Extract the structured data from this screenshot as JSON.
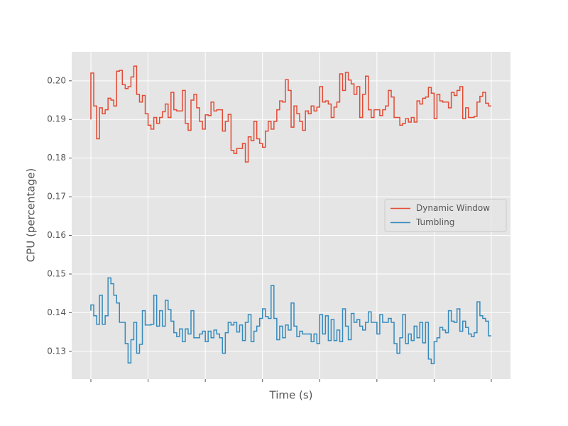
{
  "chart_data": {
    "type": "step",
    "xlabel": "Time (s)",
    "ylabel": "CPU (percentage)",
    "x": [
      0,
      1,
      2,
      3,
      4,
      5,
      6,
      7,
      8,
      9,
      10,
      11,
      12,
      13,
      14,
      15,
      16,
      17,
      18,
      19,
      20,
      21,
      22,
      23,
      24,
      25,
      26,
      27,
      28,
      29,
      30,
      31,
      32,
      33,
      34,
      35,
      36,
      37,
      38,
      39,
      40,
      41,
      42,
      43,
      44,
      45,
      46,
      47,
      48,
      49,
      50,
      51,
      52,
      53,
      54,
      55,
      56,
      57,
      58,
      59,
      60,
      61,
      62,
      63,
      64,
      65,
      66,
      67,
      68,
      69,
      70,
      71,
      72,
      73,
      74,
      75,
      76,
      77,
      78,
      79,
      80,
      81,
      82,
      83,
      84,
      85,
      86,
      87,
      88,
      89,
      90,
      91,
      92,
      93,
      94,
      95,
      96,
      97,
      98,
      99,
      100,
      101,
      102,
      103,
      104,
      105,
      106,
      107,
      108,
      109,
      110,
      111,
      112,
      113,
      114,
      115,
      116,
      117,
      118,
      119,
      120,
      121,
      122,
      123,
      124,
      125,
      126,
      127,
      128,
      129,
      130,
      131,
      132,
      133,
      134,
      135,
      136,
      137,
      138,
      139,
      140
    ],
    "series": [
      {
        "name": "Dynamic Window",
        "color": "#E24A33",
        "values": [
          0.19,
          0.202,
          0.1935,
          0.185,
          0.193,
          0.1915,
          0.1925,
          0.1955,
          0.195,
          0.1935,
          0.2025,
          0.2027,
          0.199,
          0.198,
          0.1985,
          0.201,
          0.2038,
          0.1965,
          0.1945,
          0.1962,
          0.1915,
          0.1885,
          0.1875,
          0.1905,
          0.189,
          0.1905,
          0.192,
          0.194,
          0.1905,
          0.197,
          0.1925,
          0.1922,
          0.1922,
          0.1975,
          0.189,
          0.1872,
          0.195,
          0.1965,
          0.193,
          0.1895,
          0.1875,
          0.1912,
          0.191,
          0.1945,
          0.1922,
          0.1925,
          0.1925,
          0.187,
          0.1895,
          0.1913,
          0.182,
          0.1812,
          0.1825,
          0.1825,
          0.1838,
          0.179,
          0.1855,
          0.1845,
          0.1895,
          0.185,
          0.1838,
          0.1828,
          0.187,
          0.1895,
          0.1875,
          0.1895,
          0.1925,
          0.1948,
          0.1945,
          0.2003,
          0.1975,
          0.188,
          0.1935,
          0.1915,
          0.1895,
          0.1872,
          0.1922,
          0.1915,
          0.1935,
          0.1922,
          0.1932,
          0.1985,
          0.1945,
          0.1948,
          0.194,
          0.1905,
          0.1932,
          0.1945,
          0.2018,
          0.1975,
          0.2022,
          0.2002,
          0.1992,
          0.1965,
          0.1985,
          0.1905,
          0.1965,
          0.2012,
          0.1925,
          0.1905,
          0.1925,
          0.1925,
          0.191,
          0.1925,
          0.1935,
          0.1975,
          0.1958,
          0.1905,
          0.1905,
          0.1885,
          0.189,
          0.1902,
          0.1893,
          0.1905,
          0.1893,
          0.1948,
          0.194,
          0.1955,
          0.1958,
          0.1983,
          0.1968,
          0.1902,
          0.1965,
          0.1948,
          0.1945,
          0.1945,
          0.193,
          0.197,
          0.1962,
          0.1975,
          0.1985,
          0.1902,
          0.193,
          0.1905,
          0.1905,
          0.1908,
          0.1945,
          0.196,
          0.197,
          0.1942,
          0.1935
        ]
      },
      {
        "name": "Tumbling",
        "color": "#348ABD",
        "values": [
          0.1405,
          0.142,
          0.1392,
          0.137,
          0.1445,
          0.137,
          0.1392,
          0.149,
          0.1475,
          0.1445,
          0.1425,
          0.1375,
          0.1375,
          0.132,
          0.127,
          0.133,
          0.1375,
          0.1295,
          0.1318,
          0.1405,
          0.1368,
          0.1368,
          0.137,
          0.1445,
          0.1365,
          0.1405,
          0.1365,
          0.1432,
          0.1408,
          0.1378,
          0.1348,
          0.1338,
          0.1358,
          0.1325,
          0.1358,
          0.1345,
          0.1405,
          0.1335,
          0.1335,
          0.1345,
          0.1352,
          0.1325,
          0.1352,
          0.1335,
          0.1355,
          0.1345,
          0.1335,
          0.1295,
          0.1348,
          0.1375,
          0.1368,
          0.1375,
          0.135,
          0.1368,
          0.1328,
          0.1375,
          0.1395,
          0.1325,
          0.1352,
          0.1365,
          0.1385,
          0.141,
          0.139,
          0.1385,
          0.147,
          0.1385,
          0.133,
          0.1365,
          0.1335,
          0.1368,
          0.1355,
          0.1425,
          0.1365,
          0.1338,
          0.1352,
          0.1345,
          0.1345,
          0.1345,
          0.1325,
          0.1345,
          0.132,
          0.1395,
          0.1345,
          0.1392,
          0.1328,
          0.1382,
          0.1328,
          0.1355,
          0.1325,
          0.141,
          0.1365,
          0.133,
          0.1398,
          0.1375,
          0.1382,
          0.1365,
          0.1355,
          0.1375,
          0.1402,
          0.1375,
          0.1375,
          0.1345,
          0.1395,
          0.1375,
          0.1375,
          0.1385,
          0.1375,
          0.132,
          0.1295,
          0.1335,
          0.1395,
          0.132,
          0.1345,
          0.1328,
          0.1365,
          0.1335,
          0.1375,
          0.1322,
          0.1375,
          0.128,
          0.1268,
          0.1325,
          0.1335,
          0.1362,
          0.1355,
          0.1348,
          0.1405,
          0.1378,
          0.1375,
          0.141,
          0.1352,
          0.1378,
          0.1362,
          0.1345,
          0.1338,
          0.1348,
          0.1428,
          0.1392,
          0.1385,
          0.1378,
          0.134
        ]
      }
    ],
    "xlim": [
      -6.7,
      146.7
    ],
    "xticks": [
      0,
      20,
      40,
      60,
      80,
      100,
      120,
      140
    ],
    "ylim": [
      0.1228,
      0.2075
    ],
    "yticks": [
      0.13,
      0.14,
      0.15,
      0.16,
      0.17,
      0.18,
      0.19,
      {
        "value": 0.2,
        "label": "0.20"
      }
    ],
    "grid": true,
    "legend": "center right"
  }
}
